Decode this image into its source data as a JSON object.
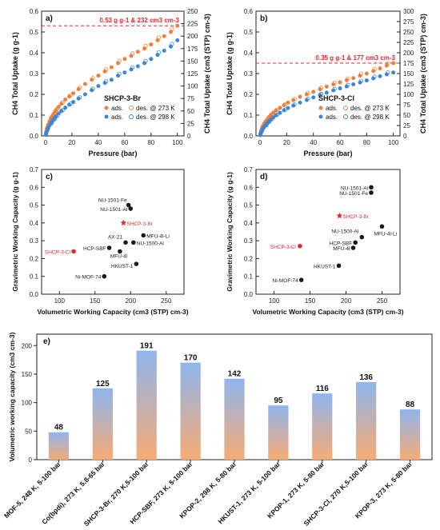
{
  "chart_data": [
    {
      "panel": "a)",
      "type": "scatter",
      "title": "SHCP-3-Br",
      "xlabel": "Pressure (bar)",
      "ylabel": "CH4 Total Uptake (g g-1)",
      "y2label": "CH4 Total Uptake (cm3 (STP) cm-3)",
      "xlim": [
        -3,
        105
      ],
      "ylim": [
        0,
        0.6
      ],
      "y2lim": [
        0,
        250
      ],
      "xticks": [
        0,
        20,
        40,
        60,
        80,
        100
      ],
      "yticks": [
        0.0,
        0.1,
        0.2,
        0.3,
        0.4,
        0.5,
        0.6
      ],
      "y2ticks": [
        0,
        25,
        50,
        75,
        100,
        125,
        150,
        175,
        200,
        225,
        250
      ],
      "ref_line": {
        "y": 0.53,
        "label": "0.53 g g-1 & 232 cm3 cm-3"
      },
      "legend_header": "SHCP-3-Br",
      "legend": [
        {
          "label_ads": "ads.",
          "label_des": "des. @ 273 K",
          "color": "#f07f3c"
        },
        {
          "label_ads": "ads.",
          "label_des": "des. @ 298 K",
          "color": "#3a86d8"
        }
      ],
      "series": [
        {
          "name": "273 K",
          "color": "#f07f3c",
          "x": [
            0.2,
            0.5,
            1,
            1.5,
            2,
            3,
            4,
            5,
            6,
            7,
            8,
            10,
            12,
            15,
            18,
            21,
            25,
            30,
            35,
            40,
            45,
            50,
            55,
            60,
            65,
            70,
            75,
            80,
            85,
            90,
            95,
            100
          ],
          "y": [
            0.01,
            0.02,
            0.035,
            0.045,
            0.055,
            0.07,
            0.085,
            0.095,
            0.105,
            0.115,
            0.125,
            0.14,
            0.155,
            0.175,
            0.19,
            0.205,
            0.225,
            0.25,
            0.27,
            0.29,
            0.31,
            0.33,
            0.35,
            0.37,
            0.385,
            0.405,
            0.42,
            0.44,
            0.46,
            0.48,
            0.5,
            0.53
          ]
        },
        {
          "name": "298 K",
          "color": "#3a86d8",
          "x": [
            0.2,
            0.5,
            1,
            1.5,
            2,
            3,
            4,
            5,
            6,
            7,
            8,
            10,
            12,
            15,
            18,
            21,
            25,
            30,
            35,
            40,
            45,
            50,
            55,
            60,
            65,
            70,
            75,
            80,
            85,
            90,
            95,
            100
          ],
          "y": [
            0.005,
            0.012,
            0.022,
            0.03,
            0.038,
            0.05,
            0.06,
            0.07,
            0.078,
            0.086,
            0.094,
            0.108,
            0.12,
            0.136,
            0.15,
            0.163,
            0.18,
            0.2,
            0.22,
            0.24,
            0.255,
            0.27,
            0.29,
            0.305,
            0.32,
            0.335,
            0.35,
            0.37,
            0.39,
            0.41,
            0.43,
            0.46
          ]
        }
      ]
    },
    {
      "panel": "b)",
      "type": "scatter",
      "title": "SHCP-3-Cl",
      "xlabel": "Pressure (bar)",
      "ylabel": "CH4 Total Uptake (g g-1)",
      "y2label": "CH4 Total Uptake (cm3 (STP) cm-3)",
      "xlim": [
        -3,
        105
      ],
      "ylim": [
        0,
        0.6
      ],
      "y2lim": [
        0,
        300
      ],
      "xticks": [
        0,
        20,
        40,
        60,
        80,
        100
      ],
      "yticks": [
        0.0,
        0.1,
        0.2,
        0.3,
        0.4,
        0.5,
        0.6
      ],
      "y2ticks": [
        0,
        25,
        50,
        75,
        100,
        125,
        150,
        175,
        200,
        225,
        250,
        275,
        300
      ],
      "ref_line": {
        "y": 0.35,
        "label": "0.35 g g-1 & 177 cm3 cm-3"
      },
      "legend_header": "SHCP-3-Cl",
      "legend": [
        {
          "label_ads": "ads.",
          "label_des": "des. @ 273 K",
          "color": "#f07f3c"
        },
        {
          "label_ads": "ads.",
          "label_des": "des. @ 298 K",
          "color": "#3a86d8"
        }
      ],
      "series": [
        {
          "name": "273 K",
          "color": "#f07f3c",
          "x": [
            0.2,
            0.5,
            1,
            1.5,
            2,
            3,
            4,
            5,
            6,
            7,
            8,
            10,
            12,
            15,
            18,
            21,
            25,
            30,
            35,
            40,
            45,
            50,
            55,
            60,
            65,
            70,
            75,
            80,
            85,
            90,
            95,
            100
          ],
          "y": [
            0.008,
            0.016,
            0.028,
            0.038,
            0.046,
            0.058,
            0.068,
            0.076,
            0.084,
            0.092,
            0.1,
            0.112,
            0.122,
            0.135,
            0.148,
            0.16,
            0.172,
            0.188,
            0.2,
            0.212,
            0.225,
            0.237,
            0.248,
            0.258,
            0.268,
            0.278,
            0.29,
            0.3,
            0.312,
            0.325,
            0.338,
            0.35
          ]
        },
        {
          "name": "298 K",
          "color": "#3a86d8",
          "x": [
            0.2,
            0.5,
            1,
            1.5,
            2,
            3,
            4,
            5,
            6,
            7,
            8,
            10,
            12,
            15,
            18,
            21,
            25,
            30,
            35,
            40,
            45,
            50,
            55,
            60,
            65,
            70,
            75,
            80,
            85,
            90,
            95,
            100
          ],
          "y": [
            0.004,
            0.01,
            0.018,
            0.025,
            0.032,
            0.042,
            0.05,
            0.058,
            0.065,
            0.072,
            0.078,
            0.089,
            0.099,
            0.111,
            0.123,
            0.134,
            0.146,
            0.16,
            0.173,
            0.185,
            0.197,
            0.208,
            0.219,
            0.229,
            0.238,
            0.248,
            0.257,
            0.267,
            0.277,
            0.287,
            0.296,
            0.305
          ]
        }
      ]
    },
    {
      "panel": "c)",
      "type": "scatter",
      "xlabel": "Volumetric Working Capacity (cm3 (STP) cm-3)",
      "ylabel": "Gravimetric Working Capacity (g g-1)",
      "xlim": [
        75,
        275
      ],
      "ylim": [
        0,
        0.7
      ],
      "xticks": [
        100,
        150,
        200,
        250
      ],
      "yticks": [
        0.0,
        0.1,
        0.2,
        0.3,
        0.4,
        0.5,
        0.6,
        0.7
      ],
      "points": [
        {
          "label": "NU-1501-Fe",
          "x": 197,
          "y": 0.5,
          "color": "#1a1a1a",
          "marker": "circle"
        },
        {
          "label": "NU-1501-Al",
          "x": 200,
          "y": 0.48,
          "color": "#1a1a1a",
          "marker": "circle"
        },
        {
          "label": "SHCP-3-Br",
          "x": 190,
          "y": 0.4,
          "color": "#e6262f",
          "marker": "star"
        },
        {
          "label": "MFU-4l-Li",
          "x": 218,
          "y": 0.33,
          "color": "#1a1a1a",
          "marker": "circle"
        },
        {
          "label": "AX-21",
          "x": 193,
          "y": 0.29,
          "color": "#1a1a1a",
          "marker": "circle"
        },
        {
          "label": "NU-1500-Al",
          "x": 204,
          "y": 0.29,
          "color": "#1a1a1a",
          "marker": "circle"
        },
        {
          "label": "HCP-SBF",
          "x": 170,
          "y": 0.26,
          "color": "#1a1a1a",
          "marker": "circle"
        },
        {
          "label": "SHCP-3-Cl",
          "x": 120,
          "y": 0.24,
          "color": "#e6262f",
          "marker": "circle"
        },
        {
          "label": "MFU-4l",
          "x": 185,
          "y": 0.24,
          "color": "#1a1a1a",
          "marker": "circle"
        },
        {
          "label": "HKUST-1",
          "x": 208,
          "y": 0.17,
          "color": "#1a1a1a",
          "marker": "circle"
        },
        {
          "label": "Ni-MOF-74",
          "x": 163,
          "y": 0.1,
          "color": "#1a1a1a",
          "marker": "circle"
        }
      ]
    },
    {
      "panel": "d)",
      "type": "scatter",
      "xlabel": "Volumetric Working Capacity (cm3 (STP) cm-3)",
      "ylabel": "Gravimetric Working Capacity (g g-1)",
      "xlim": [
        75,
        275
      ],
      "ylim": [
        0,
        0.7
      ],
      "xticks": [
        100,
        150,
        200,
        250
      ],
      "yticks": [
        0.0,
        0.1,
        0.2,
        0.3,
        0.4,
        0.5,
        0.6,
        0.7
      ],
      "points": [
        {
          "label": "NU-1501-Al",
          "x": 235,
          "y": 0.6,
          "color": "#1a1a1a",
          "marker": "circle"
        },
        {
          "label": "NU-1501-Fe",
          "x": 235,
          "y": 0.57,
          "color": "#1a1a1a",
          "marker": "circle"
        },
        {
          "label": "SHCP-3-Br",
          "x": 191,
          "y": 0.44,
          "color": "#e6262f",
          "marker": "star"
        },
        {
          "label": "MFU-4l-Li",
          "x": 250,
          "y": 0.38,
          "color": "#1a1a1a",
          "marker": "circle"
        },
        {
          "label": "NU-1500-Al",
          "x": 222,
          "y": 0.32,
          "color": "#1a1a1a",
          "marker": "circle"
        },
        {
          "label": "HCP-SBF",
          "x": 213,
          "y": 0.29,
          "color": "#1a1a1a",
          "marker": "circle"
        },
        {
          "label": "SHCP-3-Cl",
          "x": 136,
          "y": 0.27,
          "color": "#e6262f",
          "marker": "circle"
        },
        {
          "label": "MFU-4l",
          "x": 210,
          "y": 0.26,
          "color": "#1a1a1a",
          "marker": "circle"
        },
        {
          "label": "HKUST-1",
          "x": 190,
          "y": 0.16,
          "color": "#1a1a1a",
          "marker": "circle"
        },
        {
          "label": "Ni-MOF-74",
          "x": 138,
          "y": 0.08,
          "color": "#1a1a1a",
          "marker": "circle"
        }
      ]
    },
    {
      "panel": "e)",
      "type": "bar",
      "ylabel": "Volumetric working capacity (cm3 cm-3)",
      "ylim": [
        0,
        220
      ],
      "yticks": [
        0,
        50,
        100,
        150,
        200
      ],
      "categories": [
        "MOF-5, 248 K, 5-100 bar",
        "Co(bpdi), 273 K, 5.8-65 bar",
        "SHCP-3-Br, 270 K,5-100 bar",
        "HCP-SBF, 273 K, 5-100 bar",
        "KPOP-2, 298 K, 5-80 bar",
        "HKUST-1, 273 K, 5-100 bar",
        "KPOP-1, 273 K, 5-80 bar",
        "SHCP-3-Cl, 270 K,5-100 bar",
        "KPOP-3, 273 K, 5-80 bar"
      ],
      "values": [
        48,
        125,
        191,
        170,
        142,
        95,
        116,
        136,
        88
      ],
      "labels": [
        "48",
        "125",
        "191",
        "170",
        "142",
        "95",
        "116",
        "136",
        "88"
      ],
      "gradient": {
        "top": "#8fb5ee",
        "bottom": "#f6ab74"
      }
    }
  ]
}
